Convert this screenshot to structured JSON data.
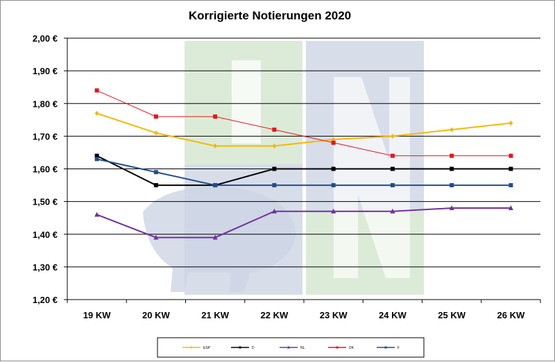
{
  "chart_data": {
    "type": "line",
    "title": "Korrigierte Notierungen 2020",
    "categories": [
      "19 KW",
      "20 KW",
      "21 KW",
      "22 KW",
      "23 KW",
      "24 KW",
      "25 KW",
      "26 KW"
    ],
    "ylim": [
      1.2,
      2.0
    ],
    "yticks": [
      1.2,
      1.3,
      1.4,
      1.5,
      1.6,
      1.7,
      1.8,
      1.9,
      2.0
    ],
    "ytick_labels": [
      "1,20 €",
      "1,30 €",
      "1,40 €",
      "1,50 €",
      "1,60 €",
      "1,70 €",
      "1,80 €",
      "1,90 €",
      "2,00 €"
    ],
    "grid": "horizontal",
    "legend_position": "bottom",
    "series": [
      {
        "name": "ESP",
        "color": "#f5b800",
        "marker": "diamond",
        "values": [
          1.77,
          1.71,
          1.67,
          1.67,
          1.69,
          1.7,
          1.72,
          1.74
        ]
      },
      {
        "name": "D",
        "color": "#000000",
        "marker": "square",
        "values": [
          1.64,
          1.55,
          1.55,
          1.6,
          1.6,
          1.6,
          1.6,
          1.6
        ]
      },
      {
        "name": "NL",
        "color": "#7030a0",
        "marker": "triangle",
        "values": [
          1.46,
          1.39,
          1.39,
          1.47,
          1.47,
          1.47,
          1.48,
          1.48
        ]
      },
      {
        "name": "DK",
        "color": "#e8141b",
        "marker": "square",
        "values": [
          1.84,
          1.76,
          1.76,
          1.72,
          1.68,
          1.64,
          1.64,
          1.64
        ]
      },
      {
        "name": "F",
        "color": "#1f4e8c",
        "marker": "square",
        "values": [
          1.63,
          1.59,
          1.55,
          1.55,
          1.55,
          1.55,
          1.55,
          1.55
        ]
      }
    ]
  }
}
